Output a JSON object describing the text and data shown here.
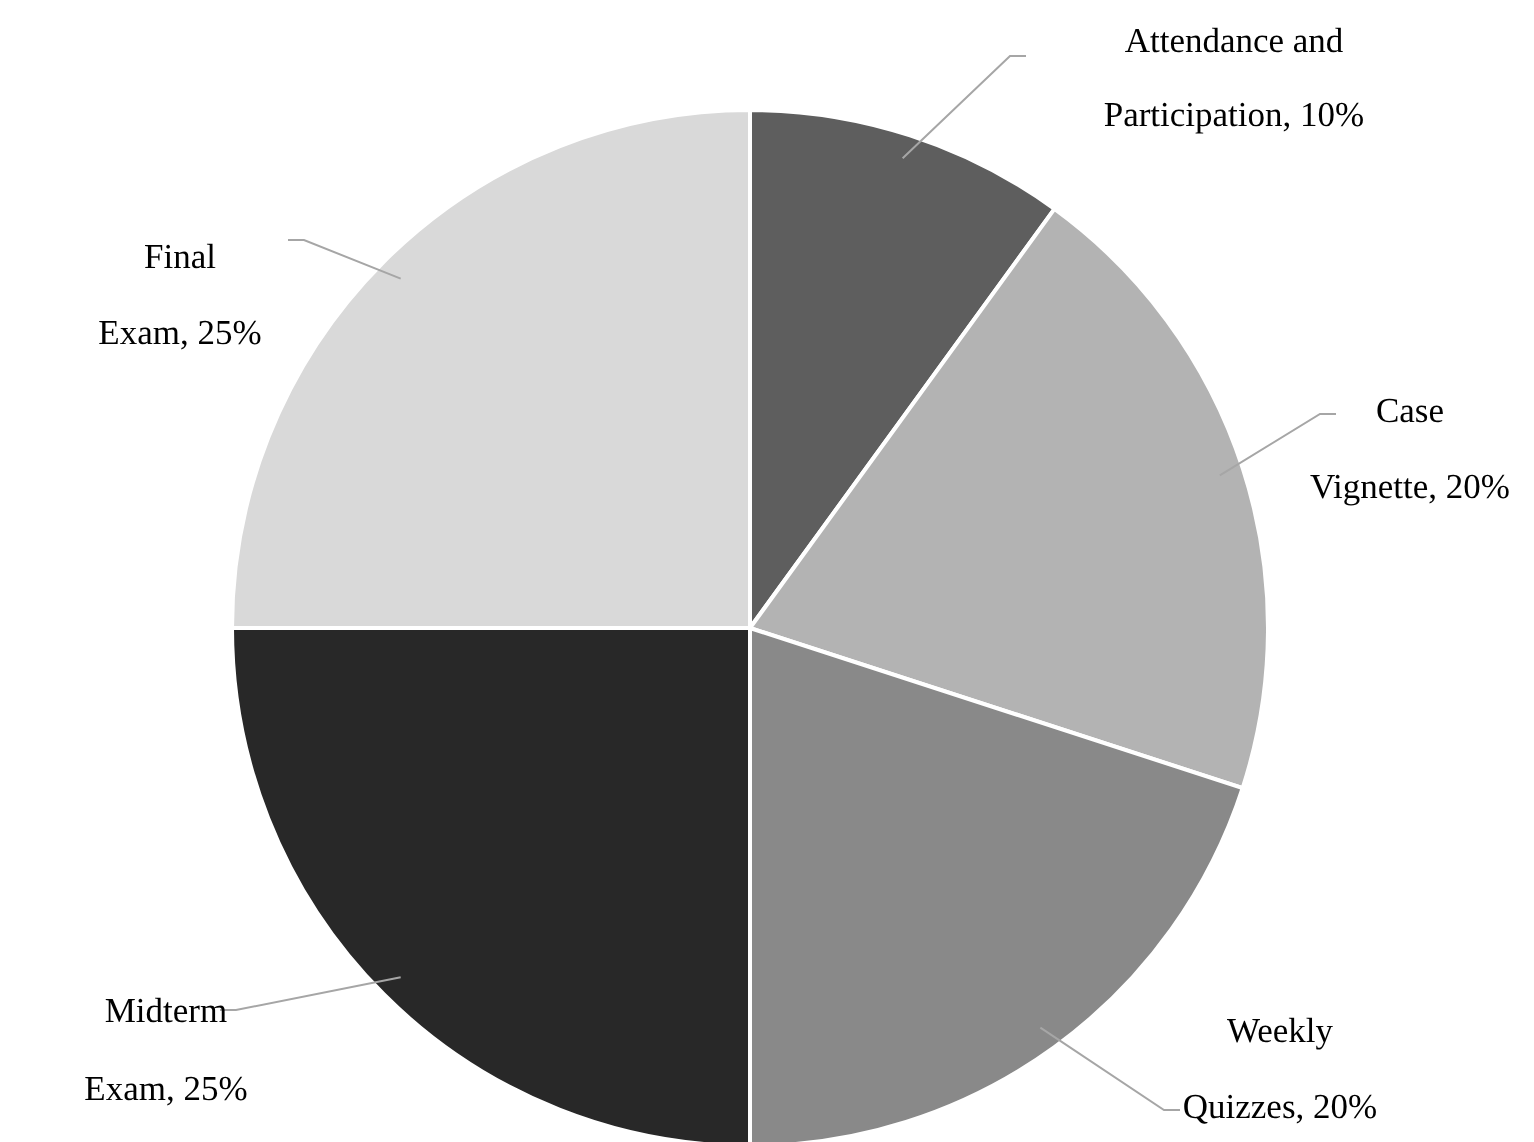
{
  "chart_data": {
    "type": "pie",
    "categories": [
      "Attendance and Participation",
      "Case Vignette",
      "Weekly Quizzes",
      "Midterm Exam",
      "Final Exam"
    ],
    "values": [
      10,
      20,
      20,
      25,
      25
    ],
    "value_labels": [
      "10%",
      "20%",
      "20%",
      "25%",
      "25%"
    ],
    "colors": [
      "#5e5e5e",
      "#b3b3b3",
      "#898989",
      "#282828",
      "#d9d9d9"
    ]
  }
}
